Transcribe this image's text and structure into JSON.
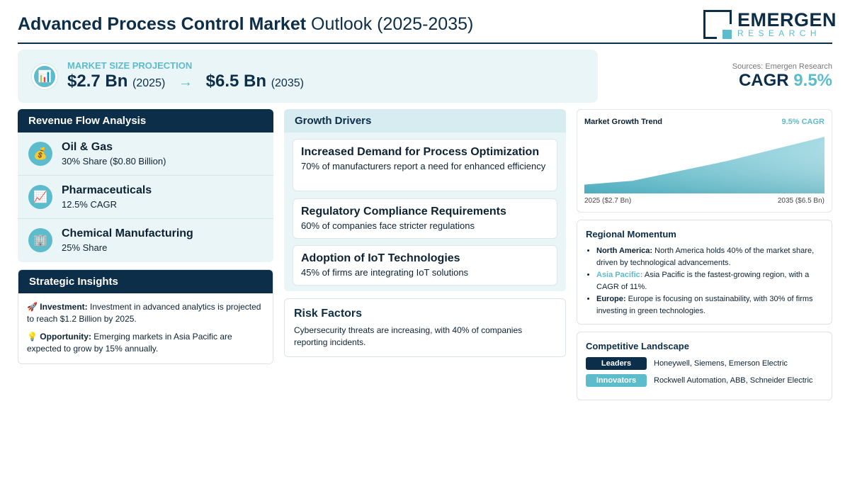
{
  "header": {
    "title_bold": "Advanced Process Control Market",
    "title_light": "Outlook (2025-2035)",
    "logo_word": "EMERGEN",
    "logo_sub": "RESEARCH"
  },
  "projection": {
    "label": "MARKET SIZE PROJECTION",
    "start_value": "$2.7 Bn",
    "start_year": "(2025)",
    "arrow": "→",
    "end_value": "$6.5 Bn",
    "end_year": "(2035)",
    "icon": "bar-chart-icon"
  },
  "sources": "Sources: Emergen Research",
  "cagr": {
    "label": "CAGR",
    "value": "9.5%"
  },
  "revenue": {
    "title": "Revenue Flow Analysis",
    "items": [
      {
        "name": "Oil & Gas",
        "detail": "30% Share ($0.80 Billion)",
        "icon": "money-bag-icon",
        "glyph": "💰"
      },
      {
        "name": "Pharmaceuticals",
        "detail": "12.5% CAGR",
        "icon": "trend-up-icon",
        "glyph": "📈"
      },
      {
        "name": "Chemical Manufacturing",
        "detail": "25% Share",
        "icon": "building-icon",
        "glyph": "🏢"
      }
    ]
  },
  "strategic": {
    "title": "Strategic Insights",
    "items": [
      {
        "glyph": "🚀",
        "label": "Investment:",
        "text": "Investment in advanced analytics is projected to reach $1.2 Billion by 2025."
      },
      {
        "glyph": "💡",
        "label": "Opportunity:",
        "text": "Emerging markets in Asia Pacific are expected to grow by 15% annually."
      }
    ]
  },
  "drivers": {
    "title": "Growth Drivers",
    "items": [
      {
        "title": "Increased Demand for Process Optimization",
        "desc": "70% of manufacturers report a need for enhanced efficiency"
      },
      {
        "title": "Regulatory Compliance Requirements",
        "desc": "60% of companies face stricter regulations"
      },
      {
        "title": "Adoption of IoT Technologies",
        "desc": "45% of firms are integrating IoT solutions"
      }
    ]
  },
  "risk": {
    "title": "Risk Factors",
    "desc": "Cybersecurity threats are increasing, with 40% of companies reporting incidents."
  },
  "trend": {
    "title": "Market Growth Trend",
    "cagr_label": "9.5% CAGR",
    "start_label": "2025 ($2.7 Bn)",
    "end_label": "2035 ($6.5 Bn)"
  },
  "chart_data": {
    "type": "area",
    "x": [
      2025,
      2027,
      2031,
      2035
    ],
    "values": [
      2.7,
      3.0,
      4.6,
      6.5
    ],
    "title": "Market Growth Trend",
    "xlabel": "",
    "ylabel": "",
    "ylim": [
      2.0,
      6.5
    ],
    "grid": false
  },
  "regional": {
    "title": "Regional Momentum",
    "items": [
      {
        "name": "North America:",
        "text": "North America holds 40% of the market share, driven by technological advancements."
      },
      {
        "name": "Asia Pacific:",
        "text": "Asia Pacific is the fastest-growing region, with a CAGR of 11%."
      },
      {
        "name": "Europe:",
        "text": "Europe is focusing on sustainability, with 30% of firms investing in green technologies."
      }
    ]
  },
  "competitive": {
    "title": "Competitive Landscape",
    "rows": [
      {
        "badge": "Leaders",
        "names": "Honeywell, Siemens, Emerson Electric"
      },
      {
        "badge": "Innovators",
        "names": "Rockwell Automation, ABB, Schneider Electric"
      }
    ]
  },
  "colors": {
    "navy": "#0d2e48",
    "teal": "#5dbccc",
    "panel_bg": "#eaf5f7"
  }
}
